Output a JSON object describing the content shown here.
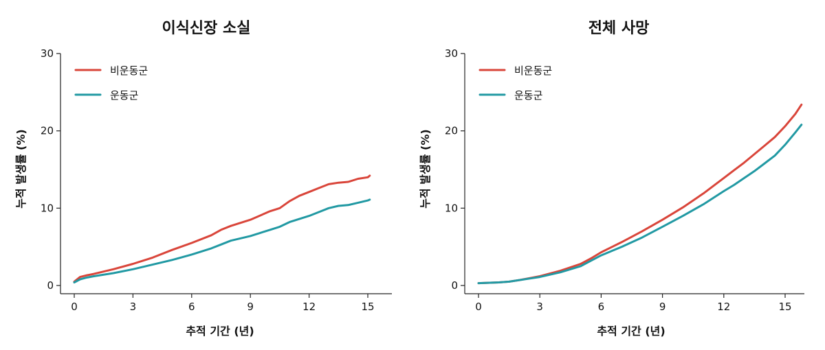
{
  "colors": {
    "non_exercise": "#d9453a",
    "exercise": "#2199a3",
    "axis": "#222222",
    "text": "#111111"
  },
  "chart_data": [
    {
      "type": "line",
      "title": "이식신장 소실",
      "xlabel": "추적 기간 (년)",
      "ylabel": "누적 발생률 (%)",
      "xlim": [
        0,
        15.9
      ],
      "ylim": [
        0,
        30
      ],
      "xticks": [
        0,
        3,
        6,
        9,
        12,
        15
      ],
      "yticks": [
        0,
        10,
        20,
        30
      ],
      "grid": false,
      "legend_position": "top-left",
      "series": [
        {
          "name": "비운동군",
          "color_key": "non_exercise",
          "x": [
            0,
            0.3,
            0.6,
            1,
            1.5,
            2,
            3,
            4,
            5,
            6,
            7,
            7.5,
            8,
            9,
            10,
            10.5,
            11,
            11.5,
            12,
            12.5,
            13,
            13.5,
            14,
            14.5,
            15,
            15.1
          ],
          "y": [
            0.5,
            1.1,
            1.3,
            1.5,
            1.8,
            2.1,
            2.8,
            3.6,
            4.6,
            5.5,
            6.5,
            7.2,
            7.7,
            8.5,
            9.6,
            10.0,
            10.9,
            11.6,
            12.1,
            12.6,
            13.1,
            13.3,
            13.4,
            13.8,
            14.0,
            14.2
          ]
        },
        {
          "name": "운동군",
          "color_key": "exercise",
          "x": [
            0,
            0.3,
            0.6,
            1,
            2,
            3,
            4,
            5,
            6,
            7,
            7.5,
            8,
            9,
            10,
            10.5,
            11,
            12,
            12.5,
            13,
            13.5,
            14,
            14.5,
            15,
            15.1
          ],
          "y": [
            0.4,
            0.8,
            1.0,
            1.2,
            1.6,
            2.1,
            2.7,
            3.3,
            4.0,
            4.8,
            5.3,
            5.8,
            6.4,
            7.2,
            7.6,
            8.2,
            9.0,
            9.5,
            10.0,
            10.3,
            10.4,
            10.7,
            11.0,
            11.1
          ]
        }
      ]
    },
    {
      "type": "line",
      "title": "전체 사망",
      "xlabel": "추적 기간 (년)",
      "ylabel": "누적 발생률 (%)",
      "xlim": [
        0,
        15.9
      ],
      "ylim": [
        0,
        30
      ],
      "xticks": [
        0,
        3,
        6,
        9,
        12,
        15
      ],
      "yticks": [
        0,
        10,
        20,
        30
      ],
      "grid": false,
      "legend_position": "top-left",
      "series": [
        {
          "name": "비운동군",
          "color_key": "non_exercise",
          "x": [
            0,
            1,
            1.5,
            2,
            3,
            4,
            5,
            5.5,
            6,
            7,
            8,
            9,
            10,
            11,
            12,
            12.5,
            13,
            13.5,
            14,
            14.5,
            15,
            15.5,
            15.8
          ],
          "y": [
            0.3,
            0.4,
            0.5,
            0.7,
            1.2,
            1.9,
            2.8,
            3.5,
            4.3,
            5.6,
            7.0,
            8.5,
            10.1,
            11.9,
            13.9,
            14.9,
            15.9,
            17.0,
            18.1,
            19.2,
            20.6,
            22.2,
            23.4
          ]
        },
        {
          "name": "운동군",
          "color_key": "exercise",
          "x": [
            0,
            1,
            1.5,
            2,
            3,
            4,
            5,
            5.5,
            6,
            7,
            8,
            9,
            10,
            11,
            12,
            12.5,
            13,
            13.5,
            14,
            14.5,
            15,
            15.5,
            15.8
          ],
          "y": [
            0.3,
            0.4,
            0.5,
            0.7,
            1.1,
            1.7,
            2.5,
            3.2,
            3.9,
            5.0,
            6.2,
            7.6,
            9.0,
            10.5,
            12.2,
            13.0,
            13.9,
            14.8,
            15.8,
            16.8,
            18.2,
            19.8,
            20.8
          ]
        }
      ]
    }
  ]
}
